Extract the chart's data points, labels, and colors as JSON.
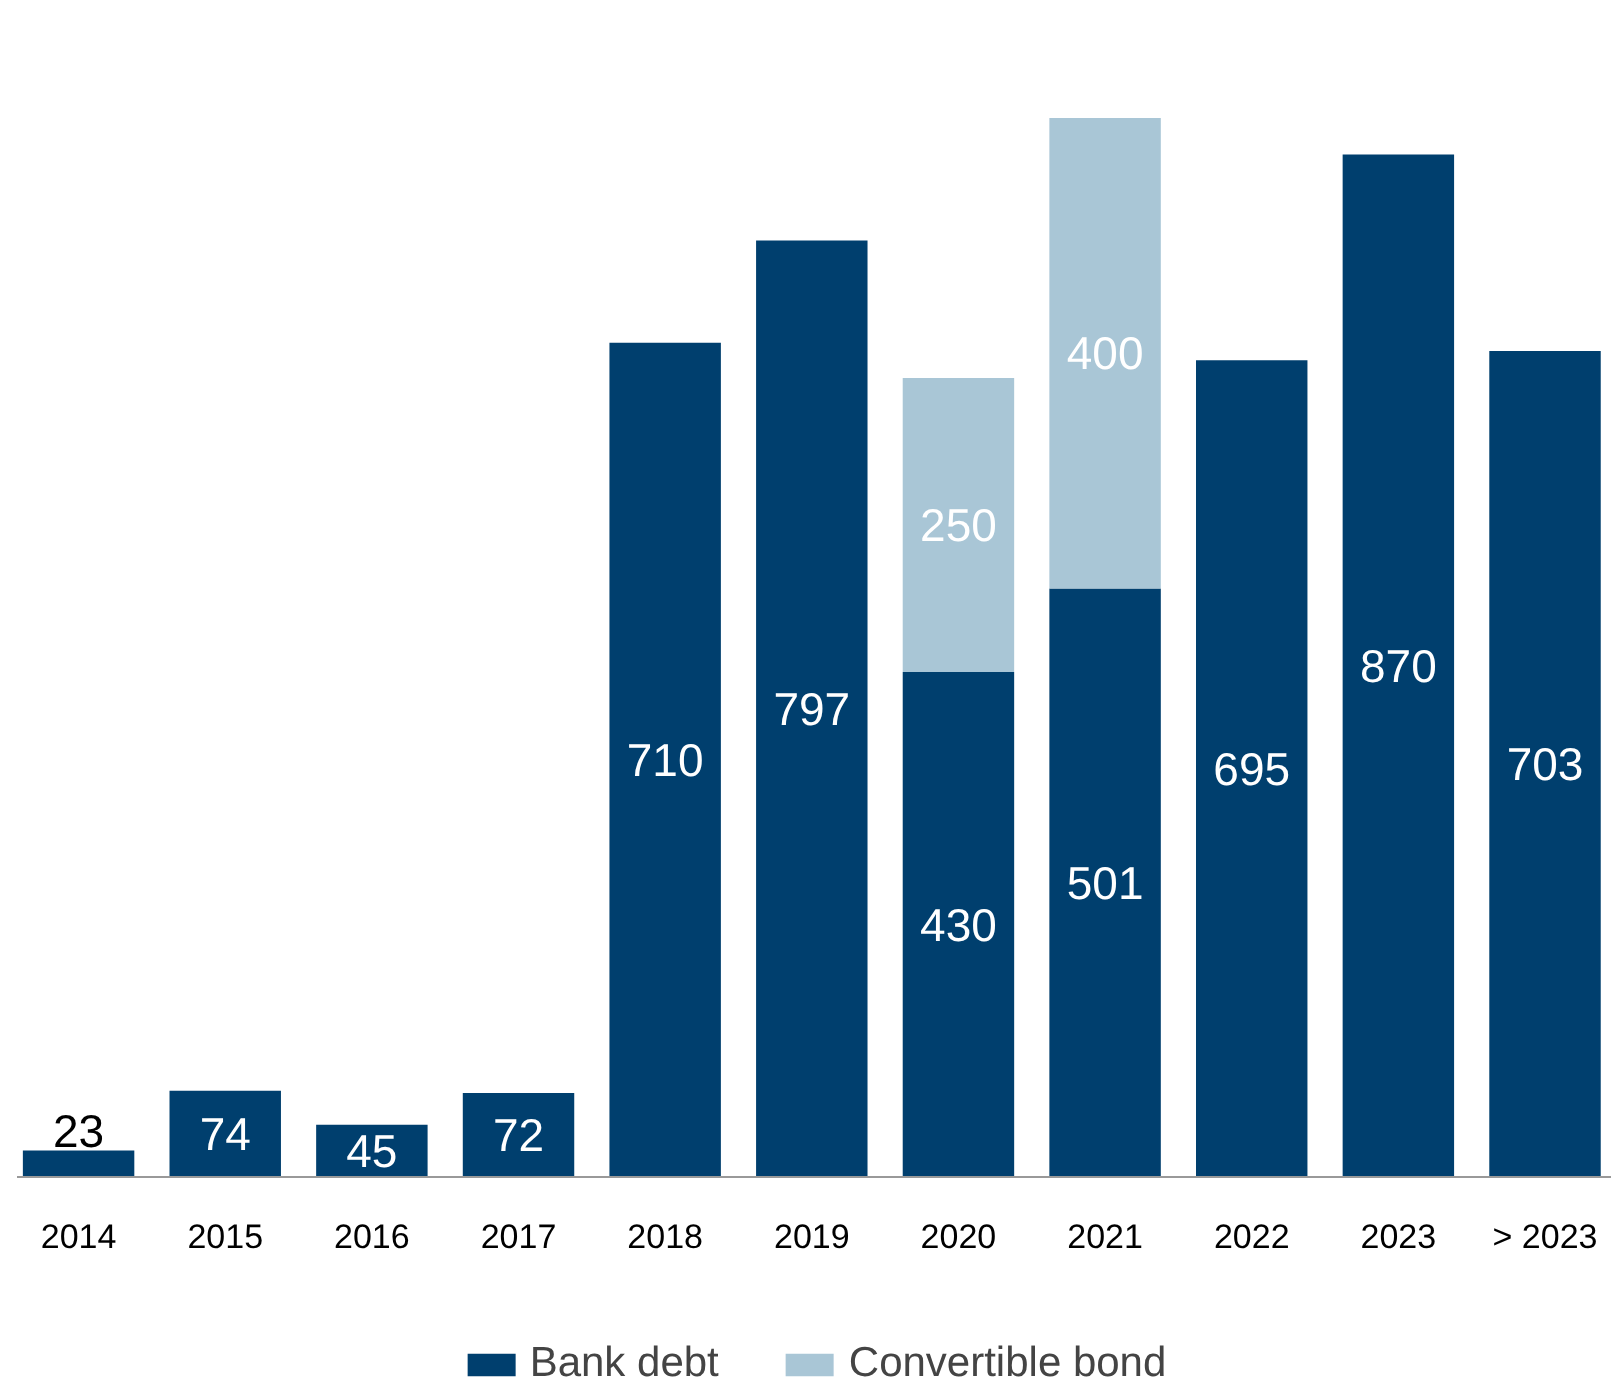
{
  "chart_data": {
    "type": "bar",
    "stacked": true,
    "categories": [
      "2014",
      "2015",
      "2016",
      "2017",
      "2018",
      "2019",
      "2020",
      "2021",
      "2022",
      "2023",
      "> 2023"
    ],
    "series": [
      {
        "name": "Bank debt",
        "color": "#003f6e",
        "values": [
          23,
          74,
          45,
          72,
          710,
          797,
          430,
          501,
          695,
          870,
          703
        ]
      },
      {
        "name": "Convertible bond",
        "color": "#a9c6d6",
        "values": [
          null,
          null,
          null,
          null,
          null,
          null,
          250,
          400,
          null,
          null,
          null
        ]
      }
    ],
    "data_labels": true,
    "legend": "bottom",
    "grid": false
  }
}
